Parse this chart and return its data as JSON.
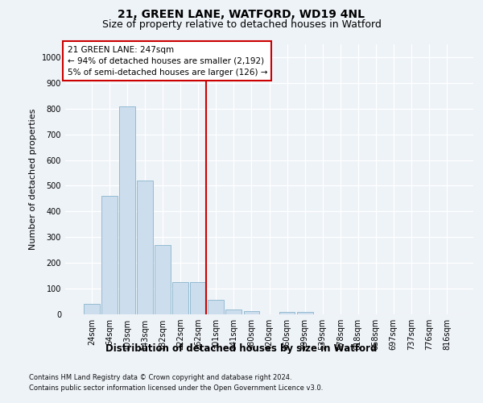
{
  "title1": "21, GREEN LANE, WATFORD, WD19 4NL",
  "title2": "Size of property relative to detached houses in Watford",
  "xlabel": "Distribution of detached houses by size in Watford",
  "ylabel": "Number of detached properties",
  "categories": [
    "24sqm",
    "64sqm",
    "103sqm",
    "143sqm",
    "182sqm",
    "222sqm",
    "262sqm",
    "301sqm",
    "341sqm",
    "380sqm",
    "420sqm",
    "460sqm",
    "499sqm",
    "539sqm",
    "578sqm",
    "618sqm",
    "658sqm",
    "697sqm",
    "737sqm",
    "776sqm",
    "816sqm"
  ],
  "bar_values": [
    40,
    460,
    810,
    520,
    270,
    125,
    125,
    57,
    20,
    12,
    0,
    10,
    10,
    0,
    0,
    0,
    0,
    0,
    0,
    0,
    0
  ],
  "bar_color": "#ccdded",
  "bar_edge_color": "#89b4cc",
  "vline_x_index": 6.45,
  "vline_color": "#cc0000",
  "annotation_line1": "21 GREEN LANE: 247sqm",
  "annotation_line2": "← 94% of detached houses are smaller (2,192)",
  "annotation_line3": "5% of semi-detached houses are larger (126) →",
  "annotation_box_color": "#ffffff",
  "annotation_box_edge": "#cc0000",
  "ylim": [
    0,
    1050
  ],
  "yticks": [
    0,
    100,
    200,
    300,
    400,
    500,
    600,
    700,
    800,
    900,
    1000
  ],
  "footnote1": "Contains HM Land Registry data © Crown copyright and database right 2024.",
  "footnote2": "Contains public sector information licensed under the Open Government Licence v3.0.",
  "bg_color": "#eef3f8",
  "plot_bg_color": "#eef3f8",
  "grid_color": "#ffffff",
  "title1_fontsize": 10,
  "title2_fontsize": 9,
  "ylabel_fontsize": 8,
  "xlabel_fontsize": 8.5,
  "tick_fontsize": 7,
  "annot_fontsize": 7.5,
  "footnote_fontsize": 6
}
